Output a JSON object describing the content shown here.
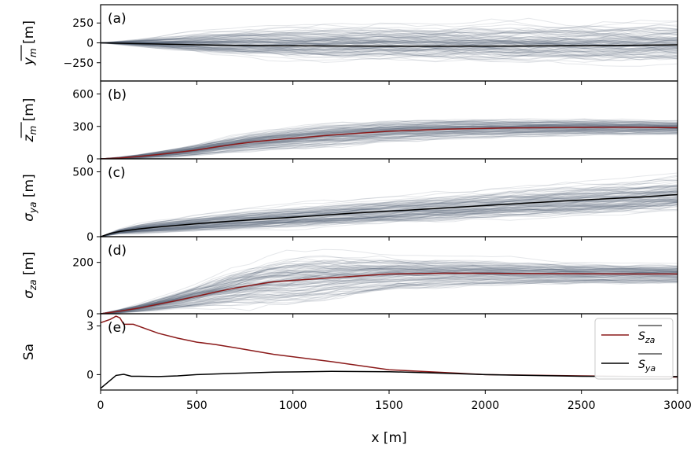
{
  "chart_data": {
    "type": "line",
    "xlabel": "x [m]",
    "xlim": [
      0,
      3000
    ],
    "xticks": [
      "0",
      "500",
      "1000",
      "1500",
      "2000",
      "2500",
      "3000"
    ],
    "xtick_values": [
      0,
      500,
      1000,
      1500,
      2000,
      2500,
      3000
    ],
    "ensemble_color": "#5b6b7c",
    "panels": [
      {
        "tag": "(a)",
        "ylabel": "y_m [m]",
        "ylabel_parts": {
          "base": "y",
          "sub": "m",
          "overline": true,
          "italic": true,
          "unit": "[m]"
        },
        "ylim": [
          -480,
          480
        ],
        "yticks": [
          "−250",
          "0",
          "250"
        ],
        "ytick_values": [
          -250,
          0,
          250
        ],
        "ytop_label": "",
        "ensemble": {
          "spread": [
            0,
            50,
            110,
            160,
            200,
            220,
            235,
            245,
            250,
            255,
            260,
            265,
            268,
            272,
            275,
            280
          ],
          "center": 0
        },
        "mean": {
          "name": "mean",
          "color": "#000000",
          "x": [
            0,
            100,
            300,
            500,
            700,
            900,
            1200,
            1500,
            1800,
            2100,
            2400,
            2700,
            3000
          ],
          "y": [
            0,
            -5,
            -15,
            -25,
            -32,
            -36,
            -40,
            -42,
            -42,
            -41,
            -38,
            -33,
            -25
          ]
        }
      },
      {
        "tag": "(b)",
        "ylabel": "z_m [m]",
        "ylabel_parts": {
          "base": "z",
          "sub": "m",
          "overline": true,
          "italic": true,
          "unit": "[m]"
        },
        "ylim": [
          0,
          720
        ],
        "yticks": [
          "0",
          "300",
          "600"
        ],
        "ytick_values": [
          0,
          300,
          600
        ],
        "ensemble": {
          "spread": [
            0,
            20,
            45,
            70,
            95,
            110,
            115,
            110,
            105,
            100,
            95,
            90,
            85,
            80,
            75,
            70
          ],
          "center": "mean"
        },
        "mean": {
          "name": "mean",
          "color": "#8b1a1a",
          "x": [
            0,
            100,
            200,
            300,
            400,
            500,
            600,
            700,
            800,
            900,
            1000,
            1200,
            1500,
            1800,
            2100,
            2400,
            2700,
            3000
          ],
          "y": [
            0,
            8,
            22,
            40,
            60,
            82,
            110,
            135,
            158,
            175,
            190,
            220,
            255,
            275,
            285,
            290,
            292,
            288
          ]
        }
      },
      {
        "tag": "(c)",
        "ylabel": "σya [m]",
        "ylabel_parts": {
          "base": "σ",
          "sub": "ya",
          "overline": false,
          "italic": true,
          "unit": "[m]"
        },
        "ylim": [
          0,
          600
        ],
        "yticks": [
          "0",
          "500"
        ],
        "ytick_values": [
          0,
          500
        ],
        "ensemble": {
          "spread": [
            0,
            40,
            60,
            75,
            85,
            92,
            98,
            104,
            110,
            115,
            120,
            125,
            130,
            135,
            140,
            145
          ],
          "center": "mean"
        },
        "mean": {
          "name": "mean",
          "color": "#000000",
          "x": [
            0,
            50,
            100,
            200,
            300,
            500,
            700,
            1000,
            1300,
            1600,
            2000,
            2400,
            2800,
            3000
          ],
          "y": [
            0,
            25,
            40,
            60,
            75,
            100,
            122,
            150,
            180,
            205,
            240,
            275,
            305,
            325
          ]
        }
      },
      {
        "tag": "(d)",
        "ylabel": "σza [m]",
        "ylabel_parts": {
          "base": "σ",
          "sub": "za",
          "overline": false,
          "italic": true,
          "unit": "[m]"
        },
        "ylim": [
          0,
          300
        ],
        "yticks": [
          "0",
          "200"
        ],
        "ytick_values": [
          0,
          200
        ],
        "ensemble": {
          "spread": [
            0,
            15,
            35,
            60,
            85,
            100,
            90,
            75,
            65,
            58,
            52,
            48,
            45,
            42,
            40,
            38
          ],
          "center": "mean"
        },
        "mean": {
          "name": "mean",
          "color": "#8b1a1a",
          "x": [
            0,
            100,
            200,
            300,
            400,
            500,
            600,
            700,
            800,
            900,
            1000,
            1200,
            1500,
            1800,
            2100,
            2400,
            2700,
            3000
          ],
          "y": [
            0,
            10,
            22,
            37,
            52,
            68,
            85,
            100,
            113,
            125,
            130,
            140,
            155,
            158,
            157,
            156,
            155,
            155
          ]
        }
      },
      {
        "tag": "(e)",
        "ylabel": "Sa",
        "ylabel_parts": {
          "base": "S",
          "sub": "",
          "overline": false,
          "italic": false,
          "unit": "",
          "plain": "Sa"
        },
        "ylim": [
          -0.95,
          3.75
        ],
        "yticks": [
          "0",
          "3"
        ],
        "ytick_values": [
          0,
          3
        ],
        "series": [
          {
            "name": "Sza",
            "legend_base": "S",
            "legend_sub": "za",
            "color": "#8b1a1a",
            "x": [
              0,
              50,
              80,
              100,
              120,
              170,
              300,
              400,
              500,
              600,
              700,
              900,
              1200,
              1500,
              1800,
              2000,
              2500,
              3000
            ],
            "y": [
              3.2,
              3.4,
              3.6,
              3.5,
              3.1,
              3.1,
              2.55,
              2.25,
              2.0,
              1.85,
              1.65,
              1.25,
              0.8,
              0.3,
              0.12,
              0.0,
              -0.08,
              -0.15
            ]
          },
          {
            "name": "Sya",
            "legend_base": "S",
            "legend_sub": "ya",
            "color": "#000000",
            "x": [
              0,
              40,
              80,
              120,
              160,
              200,
              300,
              400,
              500,
              700,
              900,
              1200,
              1500,
              1800,
              2000,
              2500,
              3000
            ],
            "y": [
              -0.85,
              -0.45,
              -0.05,
              0.02,
              -0.1,
              -0.1,
              -0.12,
              -0.08,
              0.0,
              0.08,
              0.15,
              0.2,
              0.18,
              0.08,
              0.0,
              -0.1,
              -0.12
            ]
          }
        ]
      }
    ]
  }
}
